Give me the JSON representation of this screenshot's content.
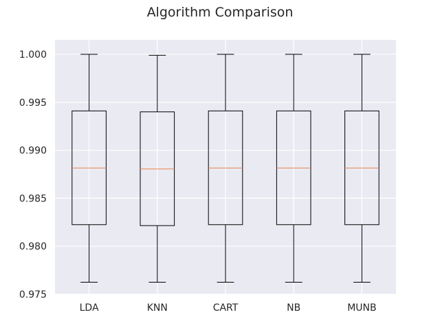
{
  "chart_data": {
    "type": "box",
    "title": "Algorithm Comparison",
    "xlabel": "",
    "ylabel": "",
    "categories": [
      "LDA",
      "KNN",
      "CART",
      "NB",
      "MUNB"
    ],
    "boxes": [
      {
        "category": "LDA",
        "whisker_low": 0.97625,
        "q1": 0.98225,
        "median": 0.98815,
        "q3": 0.9941,
        "whisker_high": 1.0
      },
      {
        "category": "KNN",
        "whisker_low": 0.97625,
        "q1": 0.98215,
        "median": 0.98805,
        "q3": 0.994,
        "whisker_high": 0.9999
      },
      {
        "category": "CART",
        "whisker_low": 0.97625,
        "q1": 0.98225,
        "median": 0.98815,
        "q3": 0.9941,
        "whisker_high": 1.0
      },
      {
        "category": "NB",
        "whisker_low": 0.97625,
        "q1": 0.98225,
        "median": 0.98815,
        "q3": 0.9941,
        "whisker_high": 1.0
      },
      {
        "category": "MUNB",
        "whisker_low": 0.97625,
        "q1": 0.98225,
        "median": 0.98815,
        "q3": 0.9941,
        "whisker_high": 1.0
      }
    ],
    "yticks": [
      "0.975",
      "0.980",
      "0.985",
      "0.990",
      "0.995",
      "1.000"
    ],
    "ylim": [
      0.975,
      1.0015
    ],
    "grid": true,
    "colors": {
      "plot_background": "#eaeaf2",
      "grid": "#ffffff",
      "box": "#000000",
      "median": "#e8844f",
      "text": "#262626"
    }
  }
}
